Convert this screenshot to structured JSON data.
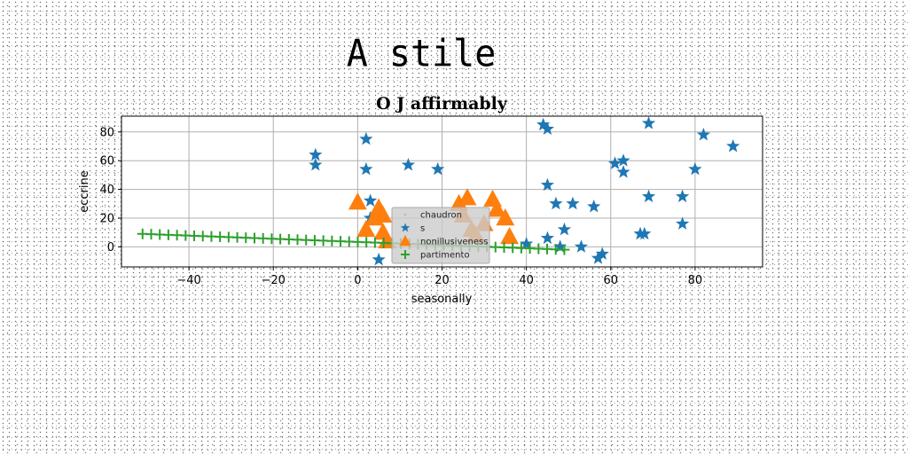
{
  "suptitle": "A stile",
  "chart_data": {
    "type": "scatter",
    "title": "O J affirmably",
    "xlabel": "seasonally",
    "ylabel": "eccrine",
    "xlim": [
      -56,
      96
    ],
    "ylim": [
      -14,
      91
    ],
    "xticks": [
      -40,
      -20,
      0,
      20,
      40,
      60,
      80
    ],
    "yticks": [
      0,
      20,
      40,
      60,
      80
    ],
    "grid": true,
    "legend_placement": "center",
    "legend_entries": [
      "chaudron",
      "s",
      "nonillusiveness",
      "partimento"
    ],
    "colors": {
      "s": "#1f77b4",
      "nonillusiveness": "#ff7f0e",
      "partimento": "#2ca02c",
      "chaudron": "#c0c0c0"
    },
    "series": [
      {
        "name": "chaudron",
        "marker": "dot",
        "points": []
      },
      {
        "name": "s",
        "marker": "star",
        "points": [
          [
            -10,
            64
          ],
          [
            -10,
            57
          ],
          [
            2,
            75
          ],
          [
            2,
            54
          ],
          [
            3,
            32
          ],
          [
            3,
            20
          ],
          [
            5,
            -9
          ],
          [
            12,
            57
          ],
          [
            19,
            54
          ],
          [
            44,
            85
          ],
          [
            45,
            82
          ],
          [
            45,
            43
          ],
          [
            47,
            30
          ],
          [
            49,
            12
          ],
          [
            51,
            30
          ],
          [
            56,
            28
          ],
          [
            45,
            6
          ],
          [
            48,
            0
          ],
          [
            53,
            0
          ],
          [
            58,
            -5
          ],
          [
            57,
            -8
          ],
          [
            61,
            58
          ],
          [
            63,
            60
          ],
          [
            63,
            52
          ],
          [
            67,
            9
          ],
          [
            68,
            9
          ],
          [
            69,
            86
          ],
          [
            69,
            35
          ],
          [
            77,
            35
          ],
          [
            77,
            16
          ],
          [
            80,
            54
          ],
          [
            82,
            78
          ],
          [
            89,
            70
          ],
          [
            40,
            2
          ]
        ]
      },
      {
        "name": "nonillusiveness",
        "marker": "triangle",
        "points": [
          [
            0,
            31
          ],
          [
            2,
            12
          ],
          [
            4,
            20
          ],
          [
            5,
            27
          ],
          [
            6,
            22
          ],
          [
            6,
            10
          ],
          [
            7,
            4
          ],
          [
            24,
            30
          ],
          [
            26,
            34
          ],
          [
            25,
            22
          ],
          [
            27,
            12
          ],
          [
            28,
            8
          ],
          [
            32,
            33
          ],
          [
            33,
            26
          ],
          [
            35,
            20
          ],
          [
            36,
            7
          ],
          [
            30,
            16
          ]
        ]
      },
      {
        "name": "partimento",
        "marker": "plus",
        "x_range": [
          -51,
          49
        ],
        "y_range": [
          9,
          -2
        ]
      }
    ]
  }
}
